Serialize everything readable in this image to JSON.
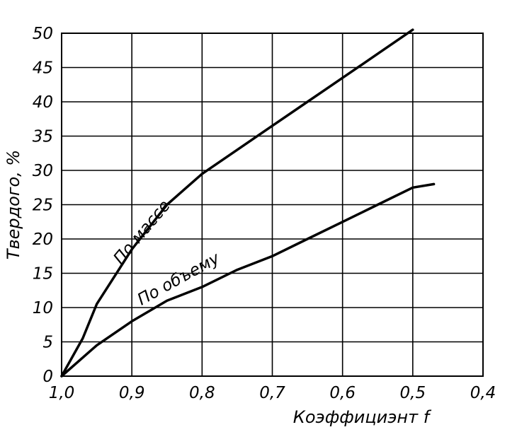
{
  "chart_data": {
    "type": "line",
    "title": "",
    "xlabel": "Коэффициэнт f",
    "ylabel": "Твердого, %",
    "xlim": [
      1.0,
      0.4
    ],
    "ylim": [
      0,
      50
    ],
    "x_ticks": [
      "1,0",
      "0,9",
      "0,8",
      "0,7",
      "0,6",
      "0,5",
      "0,4"
    ],
    "x_tick_values": [
      1.0,
      0.9,
      0.8,
      0.7,
      0.6,
      0.5,
      0.4
    ],
    "y_ticks": [
      "0",
      "5",
      "10",
      "15",
      "20",
      "25",
      "30",
      "35",
      "40",
      "45",
      "50"
    ],
    "y_tick_values": [
      0,
      5,
      10,
      15,
      20,
      25,
      30,
      35,
      40,
      45,
      50
    ],
    "grid": true,
    "legend": "none",
    "series": [
      {
        "name": "По массе",
        "color": "#000000",
        "x": [
          1.0,
          0.97,
          0.95,
          0.9,
          0.85,
          0.8,
          0.75,
          0.7,
          0.65,
          0.6,
          0.55,
          0.5
        ],
        "y": [
          0,
          5.5,
          10.5,
          18.5,
          25,
          29.5,
          33,
          36.5,
          40,
          43.5,
          47,
          50.5
        ]
      },
      {
        "name": "По объему",
        "color": "#000000",
        "x": [
          1.0,
          0.95,
          0.9,
          0.85,
          0.8,
          0.75,
          0.7,
          0.65,
          0.6,
          0.55,
          0.5,
          0.47
        ],
        "y": [
          0,
          4.5,
          8,
          11,
          13,
          15.5,
          17.5,
          20,
          22.5,
          25,
          27.5,
          28
        ]
      }
    ]
  }
}
